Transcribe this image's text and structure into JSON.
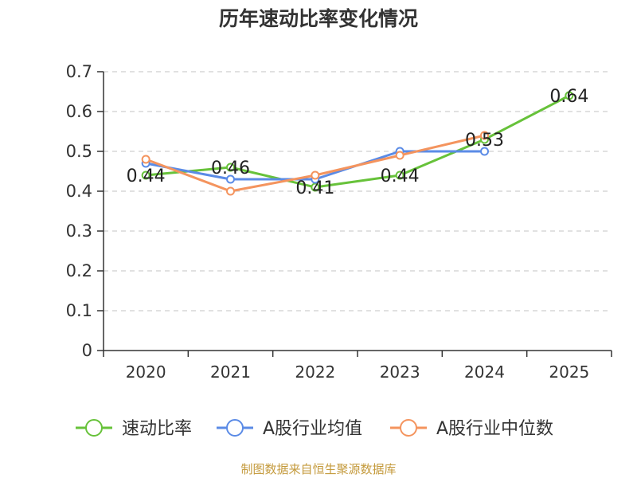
{
  "footer": "制图数据来自恒生聚源数据库",
  "chart_data": {
    "type": "line",
    "title": "历年速动比率变化情况",
    "categories": [
      "2020",
      "2021",
      "2022",
      "2023",
      "2024",
      "2025"
    ],
    "ylim": [
      0,
      0.7
    ],
    "yticks": [
      0,
      0.1,
      0.2,
      0.3,
      0.4,
      0.5,
      0.6,
      0.7
    ],
    "ytick_labels": [
      "0",
      "0.1",
      "0.2",
      "0.3",
      "0.4",
      "0.5",
      "0.6",
      "0.7"
    ],
    "grid": true,
    "legend_position": "bottom",
    "series": [
      {
        "name": "速动比率",
        "color": "#67c23a",
        "values": [
          0.44,
          0.46,
          0.41,
          0.44,
          0.53,
          0.64
        ],
        "data_labels": [
          "0.44",
          "0.46",
          "0.41",
          "0.44",
          "0.53",
          "0.64"
        ]
      },
      {
        "name": "A股行业均值",
        "color": "#5b8be6",
        "values": [
          0.47,
          0.43,
          0.43,
          0.5,
          0.5,
          null
        ]
      },
      {
        "name": "A股行业中位数",
        "color": "#f4945e",
        "values": [
          0.48,
          0.4,
          0.44,
          0.49,
          0.54,
          null
        ]
      }
    ]
  }
}
